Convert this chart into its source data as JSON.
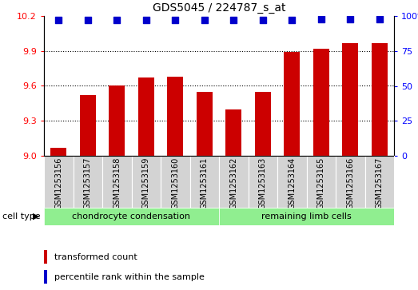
{
  "title": "GDS5045 / 224787_s_at",
  "categories": [
    "GSM1253156",
    "GSM1253157",
    "GSM1253158",
    "GSM1253159",
    "GSM1253160",
    "GSM1253161",
    "GSM1253162",
    "GSM1253163",
    "GSM1253164",
    "GSM1253165",
    "GSM1253166",
    "GSM1253167"
  ],
  "bar_values": [
    9.07,
    9.52,
    9.6,
    9.67,
    9.68,
    9.55,
    9.4,
    9.55,
    9.89,
    9.92,
    9.97,
    9.97
  ],
  "percentile_values": [
    97,
    97,
    97,
    97,
    97,
    97,
    97,
    97,
    97,
    98,
    98,
    98
  ],
  "bar_color": "#cc0000",
  "dot_color": "#0000cc",
  "ylim_left": [
    9.0,
    10.2
  ],
  "ylim_right": [
    0,
    100
  ],
  "yticks_left": [
    9.0,
    9.3,
    9.6,
    9.9,
    10.2
  ],
  "yticks_right": [
    0,
    25,
    50,
    75,
    100
  ],
  "ytick_labels_right": [
    "0",
    "25",
    "50",
    "75",
    "100%"
  ],
  "grid_values": [
    9.3,
    9.6,
    9.9
  ],
  "cell_type_groups": [
    {
      "label": "chondrocyte condensation",
      "start": 0,
      "end": 5,
      "color": "#90ee90"
    },
    {
      "label": "remaining limb cells",
      "start": 6,
      "end": 11,
      "color": "#90ee90"
    }
  ],
  "cell_type_label": "cell type",
  "legend_items": [
    {
      "label": "transformed count",
      "color": "#cc0000"
    },
    {
      "label": "percentile rank within the sample",
      "color": "#0000cc"
    }
  ],
  "bg_color": "#d3d3d3",
  "bar_width": 0.55,
  "dot_size": 35,
  "fig_width": 5.23,
  "fig_height": 3.63,
  "dpi": 100
}
